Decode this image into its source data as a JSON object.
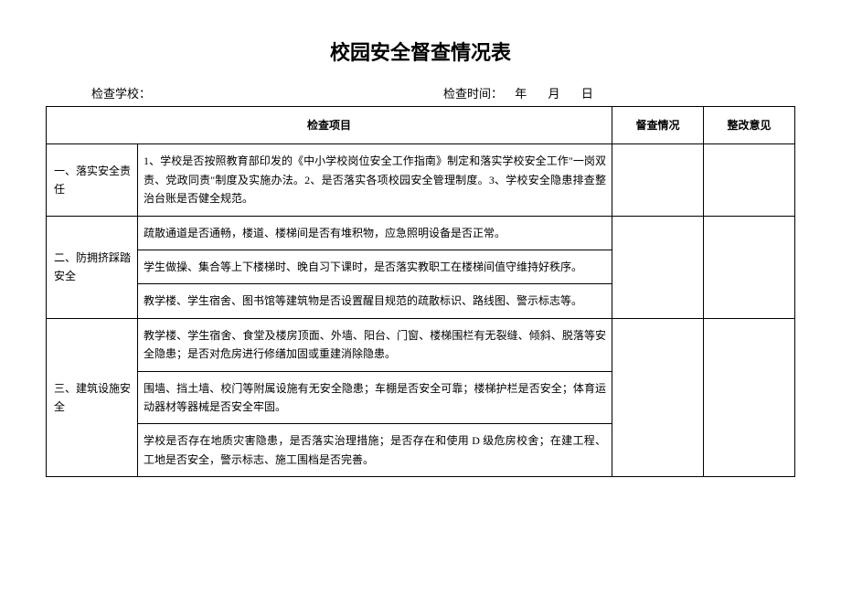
{
  "title": "校园安全督查情况表",
  "meta": {
    "school_label": "检查学校：",
    "time_label": "检查时间：",
    "year_label": "年",
    "month_label": "月",
    "day_label": "日"
  },
  "headers": {
    "item": "检查项目",
    "status": "督查情况",
    "opinion": "整改意见"
  },
  "sections": [
    {
      "category": "一、落实安全责任",
      "rows": [
        "1、学校是否按照教育部印发的《中小学校岗位安全工作指南》制定和落实学校安全工作\"一岗双责、党政同责\"制度及实施办法。2、是否落实各项校园安全管理制度。3、学校安全隐患排查整治台账是否健全规范。"
      ]
    },
    {
      "category": "二、防拥挤踩踏安全",
      "rows": [
        "疏散通道是否通畅，楼道、楼梯间是否有堆积物，应急照明设备是否正常。",
        "学生做操、集合等上下楼梯时、晚自习下课时，是否落实教职工在楼梯间值守维持好秩序。",
        "教学楼、学生宿舍、图书馆等建筑物是否设置醒目规范的疏散标识、路线图、警示标志等。"
      ]
    },
    {
      "category": "三、建筑设施安全",
      "rows": [
        "教学楼、学生宿舍、食堂及楼房顶面、外墙、阳台、门窗、楼梯围栏有无裂缝、倾斜、脱落等安全隐患；是否对危房进行修缮加固或重建消除隐患。",
        "围墙、挡土墙、校门等附属设施有无安全隐患；车棚是否安全可靠；楼梯护栏是否安全；体育运动器材等器械是否安全牢固。",
        "学校是否存在地质灾害隐患，是否落实治理措施；是否存在和使用 D 级危房校舍；在建工程、工地是否安全，警示标志、施工围档是否完善。"
      ]
    }
  ],
  "colors": {
    "border": "#000000",
    "background": "#ffffff",
    "text": "#000000"
  }
}
